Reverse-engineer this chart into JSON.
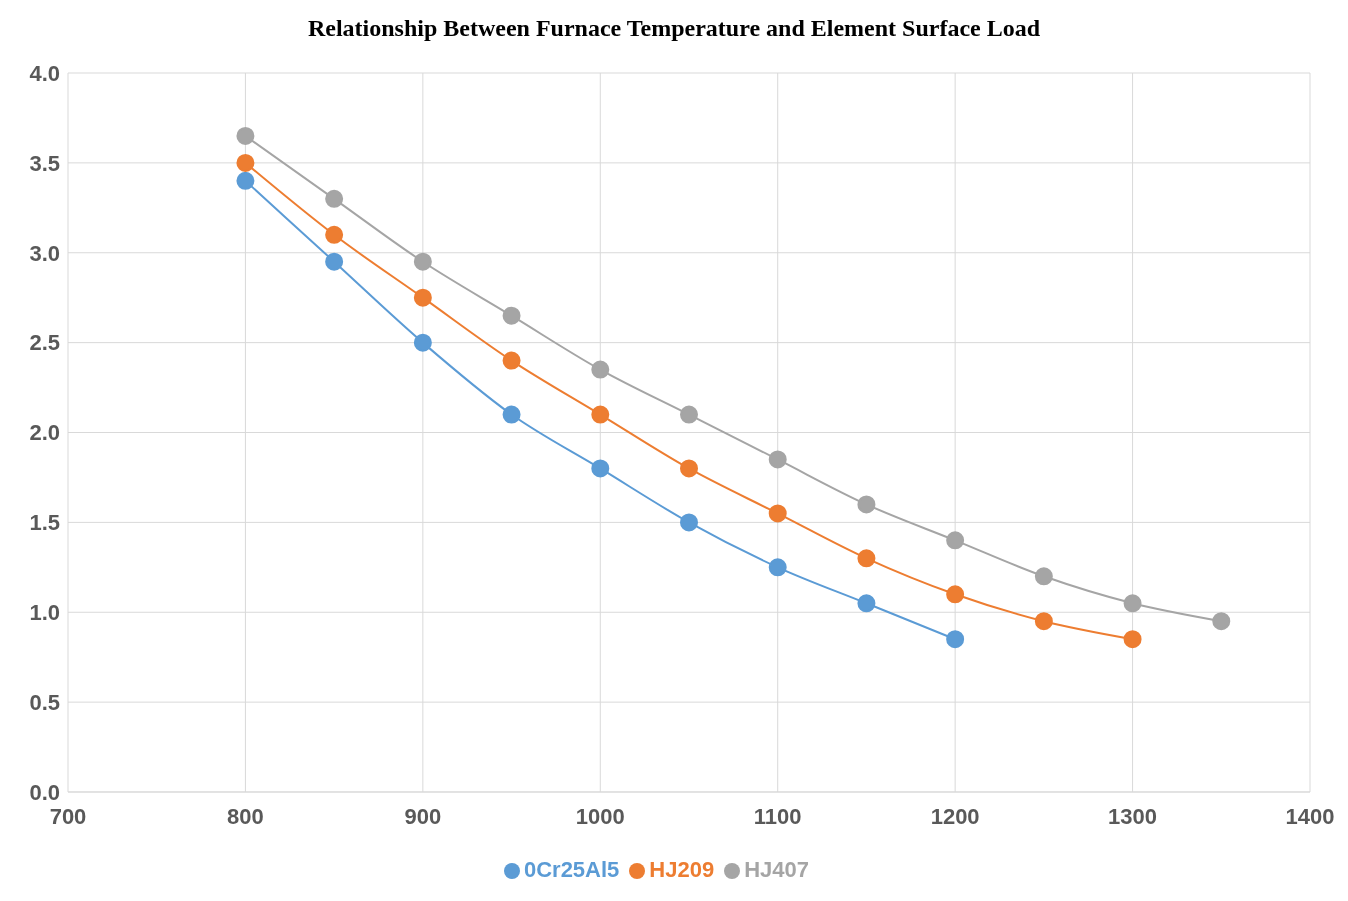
{
  "chart_data": {
    "type": "line",
    "title": "Relationship Between Furnace Temperature and Element Surface Load",
    "series": [
      {
        "name": "0Cr25Al5",
        "color": "#5b9bd5",
        "x": [
          800,
          850,
          900,
          950,
          1000,
          1050,
          1100,
          1150,
          1200
        ],
        "values": [
          3.4,
          2.95,
          2.5,
          2.1,
          1.8,
          1.5,
          1.25,
          1.05,
          0.85
        ]
      },
      {
        "name": "HJ209",
        "color": "#ed7d31",
        "x": [
          800,
          850,
          900,
          950,
          1000,
          1050,
          1100,
          1150,
          1200,
          1250,
          1300
        ],
        "values": [
          3.5,
          3.1,
          2.75,
          2.4,
          2.1,
          1.8,
          1.55,
          1.3,
          1.1,
          0.95,
          0.85
        ]
      },
      {
        "name": "HJ407",
        "color": "#a5a5a5",
        "x": [
          800,
          850,
          900,
          950,
          1000,
          1050,
          1100,
          1150,
          1200,
          1250,
          1300,
          1350
        ],
        "values": [
          3.65,
          3.3,
          2.95,
          2.65,
          2.35,
          2.1,
          1.85,
          1.6,
          1.4,
          1.2,
          1.05,
          0.95
        ]
      }
    ],
    "xlim": [
      700,
      1400
    ],
    "xticks": [
      700,
      800,
      900,
      1000,
      1100,
      1200,
      1300,
      1400
    ],
    "ylim": [
      0,
      4
    ],
    "yticks": [
      {
        "value": 0,
        "label": "0.0"
      },
      0.5,
      {
        "value": 1,
        "label": "1.0"
      },
      1.5,
      {
        "value": 2,
        "label": "2.0"
      },
      2.5,
      {
        "value": 3,
        "label": "3.0"
      },
      3.5,
      {
        "value": 4,
        "label": "4.0"
      }
    ],
    "grid": true,
    "legend": "bottom",
    "marker": "circle",
    "line_style": "solid"
  }
}
